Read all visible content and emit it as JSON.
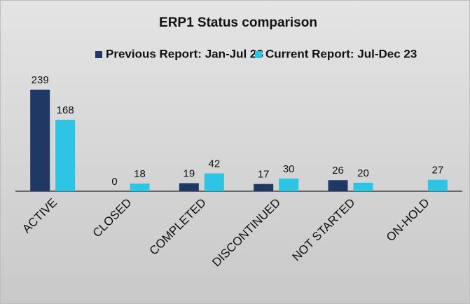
{
  "chart_data": {
    "type": "bar",
    "title": "ERP1 Status comparison",
    "categories": [
      "ACTIVE",
      "CLOSED",
      "COMPLETED",
      "DISCONTINUED",
      "NOT STARTED",
      "ON-HOLD"
    ],
    "series": [
      {
        "name": "Previous Report: Jan-Jul 23",
        "color": "#1f3864",
        "values": [
          239,
          0,
          19,
          17,
          26,
          null
        ]
      },
      {
        "name": "Current Report: Jul-Dec 23",
        "color": "#2ec4e4",
        "values": [
          168,
          18,
          42,
          30,
          20,
          27
        ]
      }
    ],
    "legend": "top"
  }
}
